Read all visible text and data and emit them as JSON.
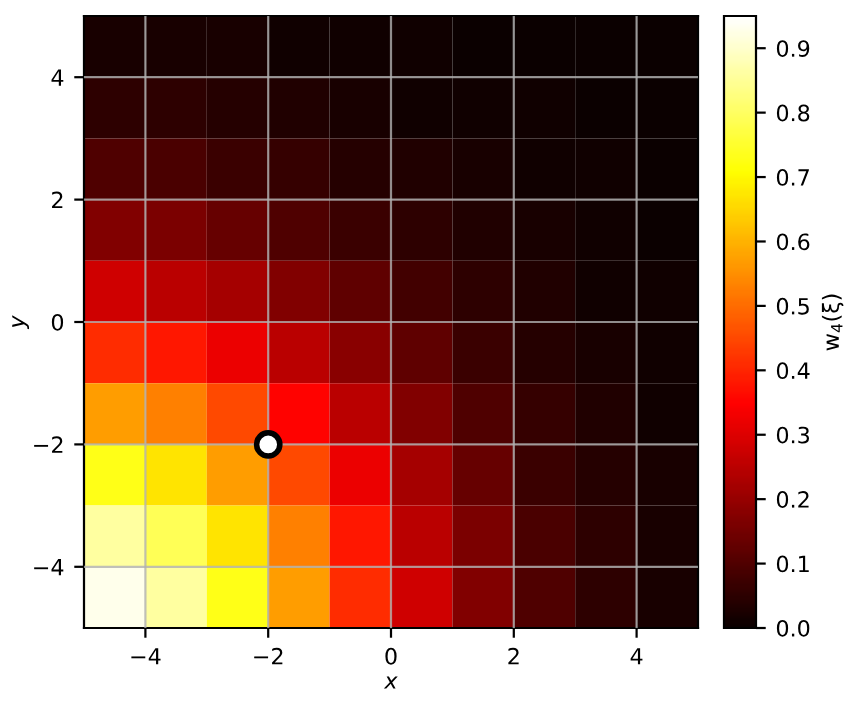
{
  "chart_data": {
    "type": "heatmap",
    "xlabel": "x",
    "ylabel": "y",
    "clabel": "w$_{4}$(ξ)",
    "x": [
      -4.5,
      -3.5,
      -2.5,
      -1.5,
      -0.5,
      0.5,
      1.5,
      2.5,
      3.5,
      4.5
    ],
    "y": [
      4.5,
      3.5,
      2.5,
      1.5,
      0.5,
      -0.5,
      -1.5,
      -2.5,
      -3.5,
      -4.5
    ],
    "cells": [
      [
        0.02,
        0.02,
        0.02,
        0.01,
        0.01,
        0.01,
        0.0,
        0.0,
        0.0,
        0.0
      ],
      [
        0.05,
        0.05,
        0.04,
        0.03,
        0.02,
        0.01,
        0.01,
        0.01,
        0.0,
        0.0
      ],
      [
        0.1,
        0.09,
        0.07,
        0.06,
        0.04,
        0.03,
        0.02,
        0.01,
        0.01,
        0.0
      ],
      [
        0.17,
        0.16,
        0.13,
        0.1,
        0.07,
        0.05,
        0.03,
        0.02,
        0.01,
        0.0
      ],
      [
        0.28,
        0.25,
        0.22,
        0.17,
        0.12,
        0.08,
        0.05,
        0.03,
        0.01,
        0.01
      ],
      [
        0.41,
        0.38,
        0.32,
        0.25,
        0.18,
        0.12,
        0.07,
        0.04,
        0.02,
        0.01
      ],
      [
        0.57,
        0.53,
        0.45,
        0.35,
        0.25,
        0.17,
        0.1,
        0.06,
        0.03,
        0.01
      ],
      [
        0.73,
        0.67,
        0.57,
        0.45,
        0.32,
        0.22,
        0.13,
        0.07,
        0.04,
        0.02
      ],
      [
        0.86,
        0.79,
        0.67,
        0.53,
        0.38,
        0.25,
        0.16,
        0.09,
        0.05,
        0.02
      ],
      [
        0.93,
        0.86,
        0.73,
        0.57,
        0.41,
        0.28,
        0.17,
        0.1,
        0.05,
        0.02
      ]
    ],
    "clim": [
      0,
      0.95
    ],
    "cticks": [
      {
        "value": 0,
        "label": "0.0"
      },
      0.1,
      0.2,
      0.3,
      0.4,
      0.5,
      0.6,
      0.7,
      0.8,
      0.9
    ],
    "xlim": [
      -5,
      5
    ],
    "ylim": [
      -5,
      5
    ],
    "xticks": [
      -4,
      -2,
      0,
      2,
      4
    ],
    "yticks": [
      -4,
      -2,
      0,
      2,
      4
    ],
    "grid": true,
    "series": [
      {
        "type": "scatter",
        "color": "#ffffff",
        "x": [
          -2
        ],
        "values": [
          -2
        ]
      }
    ],
    "marker": "circle"
  }
}
